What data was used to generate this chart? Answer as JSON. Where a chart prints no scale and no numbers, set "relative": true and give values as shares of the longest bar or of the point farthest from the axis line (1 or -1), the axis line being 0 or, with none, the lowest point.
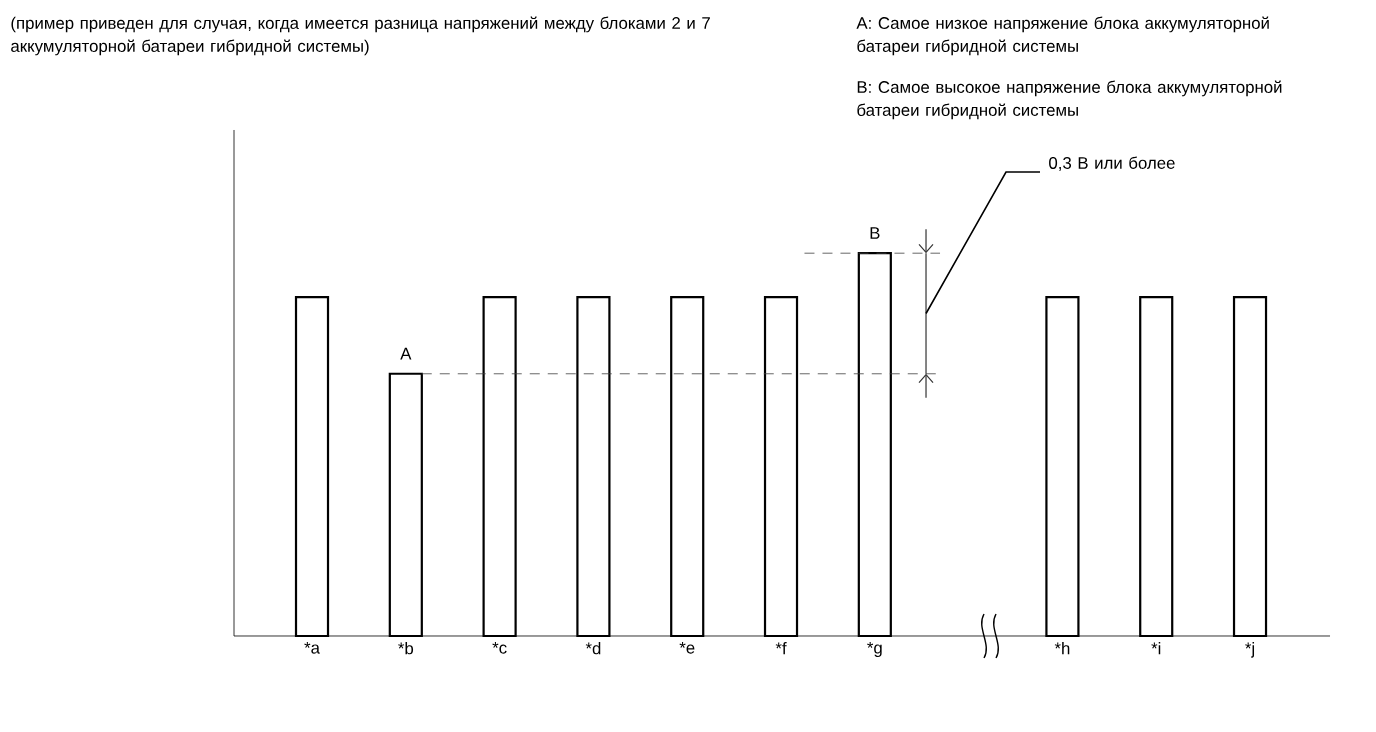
{
  "chart_data": {
    "type": "bar",
    "relative": true,
    "title": "(пример приведен для случая, когда имеется разница напряжений между блоками 2 и 7 аккумуляторной батареи гибридной системы)",
    "categories": [
      "*a",
      "*b",
      "*c",
      "*d",
      "*e",
      "*f",
      "*g",
      null,
      "*h",
      "*i",
      "*j"
    ],
    "values": [
      0.885,
      0.685,
      0.885,
      0.885,
      0.885,
      0.885,
      1,
      null,
      0.885,
      0.885,
      0.885
    ],
    "color": "#ffffff",
    "ref_lines": [
      {
        "axis": "y",
        "value": 0.685,
        "line_style": "dashed",
        "color": "#404040"
      },
      {
        "axis": "y",
        "value": 1,
        "line_style": "dashed",
        "color": "#404040"
      }
    ],
    "annotations": [
      "A: Самое низкое напряжение блока аккумуляторной батареи гибридной системы",
      "B: Самое высокое напряжение блока аккумуляторной батареи гибридной системы",
      {
        "text": "A",
        "x": "*b",
        "y": 0.685
      },
      {
        "text": "B",
        "x": "*g",
        "y": 1
      },
      "0,3 В или более"
    ]
  }
}
